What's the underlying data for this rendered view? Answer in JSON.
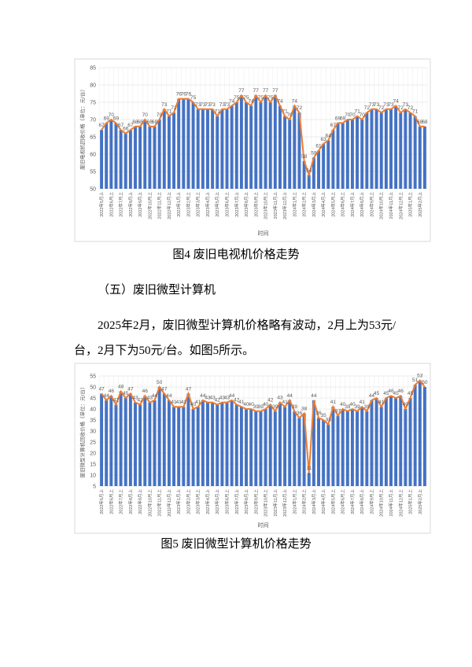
{
  "section_heading": "（五）废旧微型计算机",
  "paragraph_lines": [
    "2025年2月，废旧微型计算机价格略有波动，2月上为53元/",
    "台，2月下为50元/台。如图5所示。"
  ],
  "chart_data": [
    {
      "type": "bar",
      "line_overlay": true,
      "data_labels": true,
      "grid": true,
      "caption": "图4  废旧电视机价格走势",
      "y_label": "废旧电视机回收价格（单位：元/台）",
      "x_label": "时间",
      "color": "#4472c4",
      "line_color": "#ed7d31",
      "ylim": [
        50,
        85
      ],
      "yticks": [
        50,
        55,
        60,
        65,
        70,
        75,
        80,
        85
      ],
      "categories": [
        "2022年5月上",
        null,
        "2022年6月上",
        null,
        "2022年7月上",
        null,
        "2022年8月上",
        null,
        "2022年9月上",
        null,
        "2022年10月上",
        null,
        "2022年11月上",
        null,
        "2022年12月上",
        null,
        "2023年1月上",
        null,
        "2023年2月上",
        null,
        "2023年3月上",
        null,
        "2023年4月上",
        null,
        "2023年5月上",
        null,
        "2023年6月上",
        null,
        "2023年7月上",
        null,
        "2023年8月上",
        null,
        "2023年9月上",
        null,
        "2023年10月上",
        null,
        "2023年11月上",
        null,
        "2023年12月上",
        null,
        "2024年1月上",
        null,
        "2024年2月上",
        null,
        "2024年3月上",
        null,
        "2024年4月上",
        null,
        "2024年5月上",
        null,
        "2024年6月上",
        null,
        "2024年7月上",
        null,
        "2024年8月上",
        null,
        "2024年9月上",
        null,
        "2024年10月上",
        null,
        "2024年11月上",
        null,
        "2024年12月上",
        null,
        "2025年1月上",
        null,
        "2025年2月上",
        null
      ],
      "values": [
        67,
        69,
        70,
        69,
        67,
        66,
        67,
        68,
        68,
        70,
        68,
        68,
        70,
        73,
        71,
        72,
        76,
        76,
        76,
        75,
        73,
        73,
        73,
        73,
        71,
        73,
        73,
        74,
        75,
        77,
        75,
        74,
        77,
        75,
        77,
        75,
        77,
        74,
        71,
        70,
        74,
        72,
        58,
        54,
        59,
        61,
        63,
        64,
        67,
        69,
        69,
        70,
        70,
        71,
        70,
        72,
        73,
        73,
        72,
        73,
        73,
        74,
        72,
        73,
        72,
        71,
        68,
        68
      ]
    },
    {
      "type": "bar",
      "line_overlay": true,
      "data_labels": true,
      "grid": true,
      "caption": "图5  废旧微型计算机价格走势",
      "y_label": "废旧微型计算机回收价格（单位：元/台）",
      "x_label": "时间",
      "color": "#4472c4",
      "line_color": "#ed7d31",
      "ylim": [
        5,
        55
      ],
      "yticks": [
        5,
        10,
        15,
        20,
        25,
        30,
        35,
        40,
        45,
        50,
        55
      ],
      "categories": [
        "2022年5月上",
        null,
        "2022年6月上",
        null,
        "2022年7月上",
        null,
        "2022年8月上",
        null,
        "2022年9月上",
        null,
        "2022年10月上",
        null,
        "2022年11月上",
        null,
        "2022年12月上",
        null,
        "2023年1月上",
        null,
        "2023年2月上",
        null,
        "2023年3月上",
        null,
        "2023年4月上",
        null,
        "2023年5月上",
        null,
        "2023年6月上",
        null,
        "2023年7月上",
        null,
        "2023年8月上",
        null,
        "2023年9月上",
        null,
        "2023年10月上",
        null,
        "2023年11月上",
        null,
        "2023年12月上",
        null,
        "2024年1月上",
        null,
        "2024年2月上",
        null,
        "2024年3月上",
        null,
        "2024年4月上",
        null,
        "2024年5月上",
        null,
        "2024年6月上",
        null,
        "2024年7月上",
        null,
        "2024年8月上",
        null,
        "2024年9月上",
        null,
        "2024年10月上",
        null,
        "2024年11月上",
        null,
        "2024年12月上",
        null,
        "2025年1月上",
        null,
        "2025年2月上",
        null
      ],
      "values": [
        47,
        44,
        46,
        42,
        48,
        45,
        47,
        43,
        42,
        46,
        43,
        44,
        50,
        47,
        44,
        41,
        41,
        41,
        47,
        40,
        41,
        44,
        43,
        43,
        42,
        43,
        43,
        44,
        42,
        41,
        40,
        40,
        39,
        39,
        40,
        42,
        39,
        43,
        41,
        44,
        39,
        36,
        38,
        11,
        44,
        36,
        35,
        33,
        41,
        37,
        40,
        39,
        40,
        39,
        41,
        39,
        44,
        45,
        41,
        45,
        46,
        45,
        46,
        40,
        45,
        51,
        53,
        50
      ]
    }
  ]
}
